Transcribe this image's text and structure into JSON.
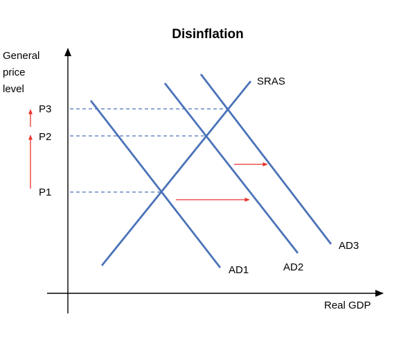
{
  "title": "Disinflation",
  "axes": {
    "y_label_lines": [
      "General",
      "price",
      "level"
    ],
    "x_label": "Real GDP"
  },
  "curves": [
    {
      "id": "sras",
      "label": "SRAS"
    },
    {
      "id": "ad1",
      "label": "AD1"
    },
    {
      "id": "ad2",
      "label": "AD2"
    },
    {
      "id": "ad3",
      "label": "AD3"
    }
  ],
  "price_levels": [
    "P1",
    "P2",
    "P3"
  ],
  "colors": {
    "curve": "#4a72b8",
    "arrow": "#e8312a",
    "axis": "#000000",
    "text": "#000000"
  }
}
